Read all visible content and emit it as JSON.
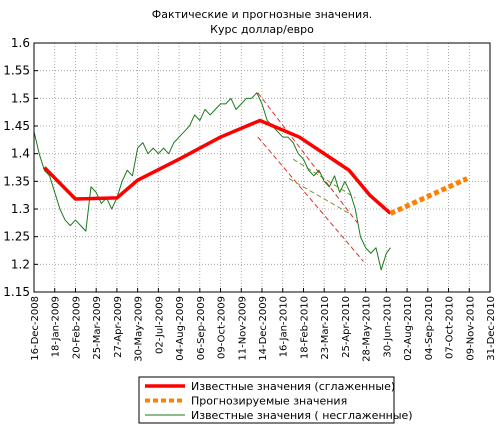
{
  "chart_data": {
    "type": "line",
    "title": "Фактические и прогнозные значения.",
    "subtitle": "Курс доллар/евро",
    "xlim": [
      0,
      22
    ],
    "ylim": [
      1.15,
      1.6
    ],
    "yticks": [
      1.6,
      1.55,
      1.5,
      1.45,
      1.4,
      1.35,
      1.3,
      1.25,
      1.2,
      1.15
    ],
    "xticks": [
      {
        "value": 0,
        "label": "16-Dec-2008"
      },
      {
        "value": 1,
        "label": "18-Jan-2009"
      },
      {
        "value": 2,
        "label": "20-Feb-2009"
      },
      {
        "value": 3,
        "label": "25-Mar-2009"
      },
      {
        "value": 4,
        "label": "27-Apr-2009"
      },
      {
        "value": 5,
        "label": "30-May-2009"
      },
      {
        "value": 6,
        "label": "02-Jul-2009"
      },
      {
        "value": 7,
        "label": "04-Aug-2009"
      },
      {
        "value": 8,
        "label": "06-Sep-2009"
      },
      {
        "value": 9,
        "label": "09-Oct-2009"
      },
      {
        "value": 10,
        "label": "11-Nov-2009"
      },
      {
        "value": 11,
        "label": "14-Dec-2009"
      },
      {
        "value": 12,
        "label": "16-Jan-2010"
      },
      {
        "value": 13,
        "label": "18-Feb-2010"
      },
      {
        "value": 14,
        "label": "23-Mar-2010"
      },
      {
        "value": 15,
        "label": "25-Apr-2010"
      },
      {
        "value": 16,
        "label": "28-May-2010"
      },
      {
        "value": 17,
        "label": "30-Jun-2010"
      },
      {
        "value": 18,
        "label": "02-Aug-2010"
      },
      {
        "value": 19,
        "label": "04-Sep-2010"
      },
      {
        "value": 20,
        "label": "07-Oct-2010"
      },
      {
        "value": 21,
        "label": "09-Nov-2010"
      },
      {
        "value": 22,
        "label": "31-Dec-2010"
      }
    ],
    "grid": true,
    "series": [
      {
        "name": "Известные значения (сглаженные)",
        "color": "#ff0000",
        "linewidth": 3.5,
        "dashed": false,
        "x": [
          0.5,
          2,
          4,
          5,
          7,
          9,
          10.9,
          12.8,
          15.2,
          16.2,
          17.2
        ],
        "values": [
          1.375,
          1.318,
          1.32,
          1.352,
          1.39,
          1.43,
          1.46,
          1.43,
          1.37,
          1.325,
          1.292
        ]
      },
      {
        "name": "Прогнозируемые значения",
        "color": "#ff8000",
        "linewidth": 5,
        "dashed": true,
        "x": [
          17.2,
          20.9
        ],
        "values": [
          1.292,
          1.355
        ]
      },
      {
        "name": "Известные значения ( несглаженные)",
        "color": "#1a7a1a",
        "linewidth": 1,
        "dashed": false,
        "x": [
          0,
          0.25,
          0.5,
          0.75,
          1,
          1.25,
          1.5,
          1.75,
          2,
          2.25,
          2.5,
          2.75,
          3,
          3.25,
          3.5,
          3.75,
          4,
          4.25,
          4.5,
          4.75,
          5,
          5.25,
          5.5,
          5.75,
          6,
          6.25,
          6.5,
          6.75,
          7,
          7.25,
          7.5,
          7.75,
          8,
          8.25,
          8.5,
          8.75,
          9,
          9.25,
          9.5,
          9.75,
          10,
          10.25,
          10.5,
          10.75,
          11,
          11.25,
          11.5,
          11.75,
          12,
          12.25,
          12.5,
          12.75,
          13,
          13.25,
          13.5,
          13.75,
          14,
          14.25,
          14.5,
          14.75,
          15,
          15.25,
          15.5,
          15.75,
          16,
          16.25,
          16.5,
          16.75,
          17,
          17.2
        ],
        "values": [
          1.44,
          1.4,
          1.37,
          1.36,
          1.33,
          1.3,
          1.28,
          1.27,
          1.28,
          1.27,
          1.26,
          1.34,
          1.33,
          1.31,
          1.32,
          1.3,
          1.32,
          1.35,
          1.37,
          1.36,
          1.41,
          1.42,
          1.4,
          1.41,
          1.4,
          1.41,
          1.4,
          1.42,
          1.43,
          1.44,
          1.45,
          1.47,
          1.46,
          1.48,
          1.47,
          1.48,
          1.49,
          1.49,
          1.5,
          1.48,
          1.49,
          1.5,
          1.5,
          1.51,
          1.49,
          1.46,
          1.45,
          1.44,
          1.43,
          1.43,
          1.42,
          1.4,
          1.39,
          1.37,
          1.36,
          1.37,
          1.35,
          1.34,
          1.36,
          1.33,
          1.35,
          1.33,
          1.3,
          1.25,
          1.23,
          1.22,
          1.23,
          1.19,
          1.22,
          1.23
        ]
      }
    ],
    "channel_lines": [
      {
        "color": "#e03030",
        "x": [
          10.8,
          15.6
        ],
        "values": [
          1.51,
          1.275
        ]
      },
      {
        "color": "#e03030",
        "x": [
          10.8,
          15.9
        ],
        "values": [
          1.43,
          1.205
        ]
      },
      {
        "color": "#7a9a30",
        "x": [
          12.5,
          15.5
        ],
        "values": [
          1.39,
          1.32
        ]
      },
      {
        "color": "#7a9a30",
        "x": [
          12.3,
          15.3
        ],
        "values": [
          1.355,
          1.29
        ]
      }
    ]
  }
}
